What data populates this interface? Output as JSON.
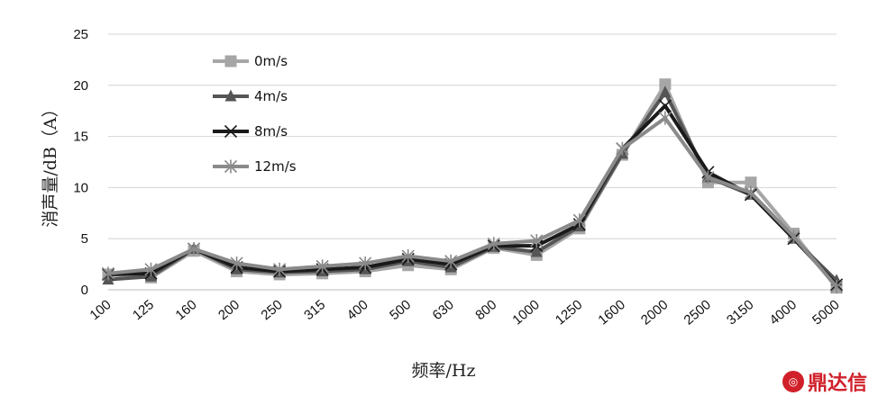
{
  "chart_data": {
    "type": "line",
    "xlabel": "频率/Hz",
    "ylabel": "消声量/dB（A）",
    "categories": [
      "100",
      "125",
      "160",
      "200",
      "250",
      "315",
      "400",
      "500",
      "630",
      "800",
      "1000",
      "1250",
      "1600",
      "2000",
      "2500",
      "3150",
      "4000",
      "5000"
    ],
    "ylim": [
      0,
      25
    ],
    "yticks": [
      0,
      5,
      10,
      15,
      20,
      25
    ],
    "grid": true,
    "legend_position": "top-left",
    "series": [
      {
        "name": "0m/s",
        "marker": "square",
        "color": "#a6a6a6",
        "values": [
          1.5,
          1.2,
          3.8,
          1.8,
          1.5,
          1.6,
          1.8,
          2.4,
          2.0,
          4.1,
          3.4,
          6.0,
          13.2,
          20.1,
          10.5,
          10.5,
          5.5,
          0.2
        ]
      },
      {
        "name": "4m/s",
        "marker": "triangle",
        "color": "#555555",
        "values": [
          1.0,
          1.3,
          4.0,
          2.0,
          1.7,
          1.8,
          2.0,
          2.8,
          2.2,
          4.2,
          3.7,
          6.2,
          13.3,
          19.3,
          11.0,
          9.3,
          5.0,
          0.9
        ]
      },
      {
        "name": "8m/s",
        "marker": "x",
        "color": "#1a1a1a",
        "values": [
          1.5,
          1.6,
          4.0,
          2.2,
          1.8,
          2.0,
          2.2,
          3.0,
          2.5,
          4.3,
          4.3,
          6.4,
          13.8,
          18.0,
          11.5,
          9.3,
          5.0,
          0.5
        ]
      },
      {
        "name": "12m/s",
        "marker": "asterisk",
        "color": "#8a8a8a",
        "values": [
          1.6,
          2.0,
          4.0,
          2.6,
          2.0,
          2.3,
          2.6,
          3.3,
          2.8,
          4.5,
          4.8,
          6.8,
          13.8,
          16.8,
          11.0,
          9.5,
          5.2,
          0.3
        ]
      }
    ]
  },
  "watermark": {
    "text": "鼎达信"
  }
}
